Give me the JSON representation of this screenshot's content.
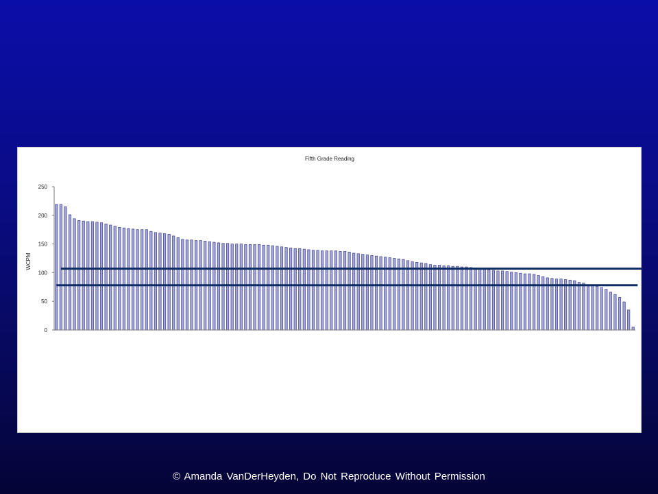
{
  "slide": {
    "background_color": "#0a0c8a",
    "footer": "© Amanda VanDerHeyden, Do Not Reproduce Without Permission"
  },
  "chart_data": {
    "type": "bar",
    "title": "Fifth Grade Reading",
    "ylabel": "WCPM",
    "xlabel": "",
    "ylim": [
      0,
      250
    ],
    "yticks": [
      0,
      50,
      100,
      150,
      200,
      250
    ],
    "ytick_labels": [
      "0",
      "50",
      "100",
      "150",
      "200",
      "250"
    ],
    "bar_color": "#a3a6d6",
    "bar_edge_color": "#3b3f8f",
    "grid": false,
    "legend": "none",
    "values": [
      219,
      219,
      215,
      201,
      194,
      191,
      190,
      189,
      189,
      188,
      187,
      185,
      183,
      181,
      179,
      178,
      177,
      176,
      175,
      175,
      175,
      172,
      170,
      169,
      168,
      167,
      164,
      161,
      158,
      157,
      157,
      156,
      156,
      155,
      154,
      153,
      152,
      151,
      151,
      150,
      150,
      150,
      149,
      149,
      149,
      149,
      148,
      148,
      147,
      146,
      145,
      144,
      143,
      142,
      142,
      141,
      140,
      139,
      139,
      138,
      138,
      138,
      138,
      137,
      137,
      136,
      134,
      133,
      132,
      131,
      130,
      129,
      128,
      127,
      126,
      125,
      124,
      123,
      121,
      119,
      118,
      117,
      116,
      114,
      113,
      113,
      112,
      112,
      111,
      111,
      110,
      110,
      109,
      108,
      108,
      106,
      105,
      104,
      103,
      103,
      102,
      101,
      100,
      99,
      98,
      98,
      97,
      95,
      93,
      91,
      90,
      89,
      89,
      88,
      87,
      86,
      83,
      82,
      79,
      77,
      76,
      74,
      71,
      66,
      62,
      57,
      49,
      35,
      5
    ],
    "reference_lines": [
      {
        "value": 107,
        "color": "#0d2c63",
        "x_from_index": 1,
        "x_to_index": 130
      },
      {
        "value": 78,
        "color": "#0d2c63",
        "x_from_index": 0,
        "x_to_index": 129
      }
    ]
  }
}
